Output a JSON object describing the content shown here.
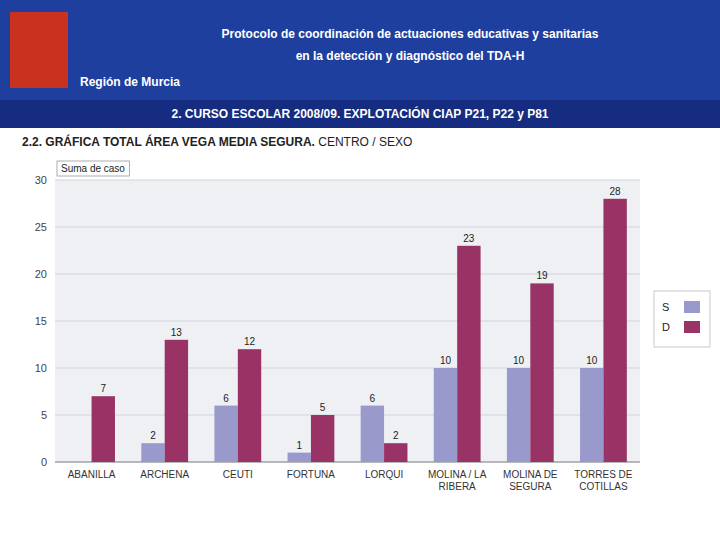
{
  "chart_data": {
    "type": "bar",
    "title": "2.2. GRÁFICA TOTAL ÁREA VEGA MEDIA SEGURA.",
    "subtitle": "2. CURSO ESCOLAR 2008/09. EXPLOTACIÓN CIAP P21, P22 y P81",
    "annotations": [
      "Región de Murcia",
      "Protocolo de coordinación de actuaciones educativas y sanitarias",
      "en la detección y diagnóstico del TDA-H",
      " CENTRO / SEXO"
    ],
    "ylabel": "Suma de caso",
    "categories": [
      "ABANILLA",
      "ARCHENA",
      "CEUTI",
      "FORTUNA",
      "LORQUI",
      "MOLINA / LA\nRIBERA",
      "MOLINA DE\nSEGURA",
      "TORRES DE\nCOTILLAS"
    ],
    "series": [
      {
        "name": "S",
        "color": "#9999cc",
        "values": [
          0,
          2,
          6,
          1,
          6,
          10,
          10,
          10
        ]
      },
      {
        "name": "D",
        "color": "#993366",
        "values": [
          7,
          13,
          12,
          5,
          2,
          23,
          19,
          28
        ]
      }
    ],
    "ylim": [
      0,
      30
    ],
    "yticks": [
      0,
      5,
      10,
      15,
      20,
      25,
      30
    ],
    "grid": true,
    "data_labels": true,
    "legend": "right"
  }
}
